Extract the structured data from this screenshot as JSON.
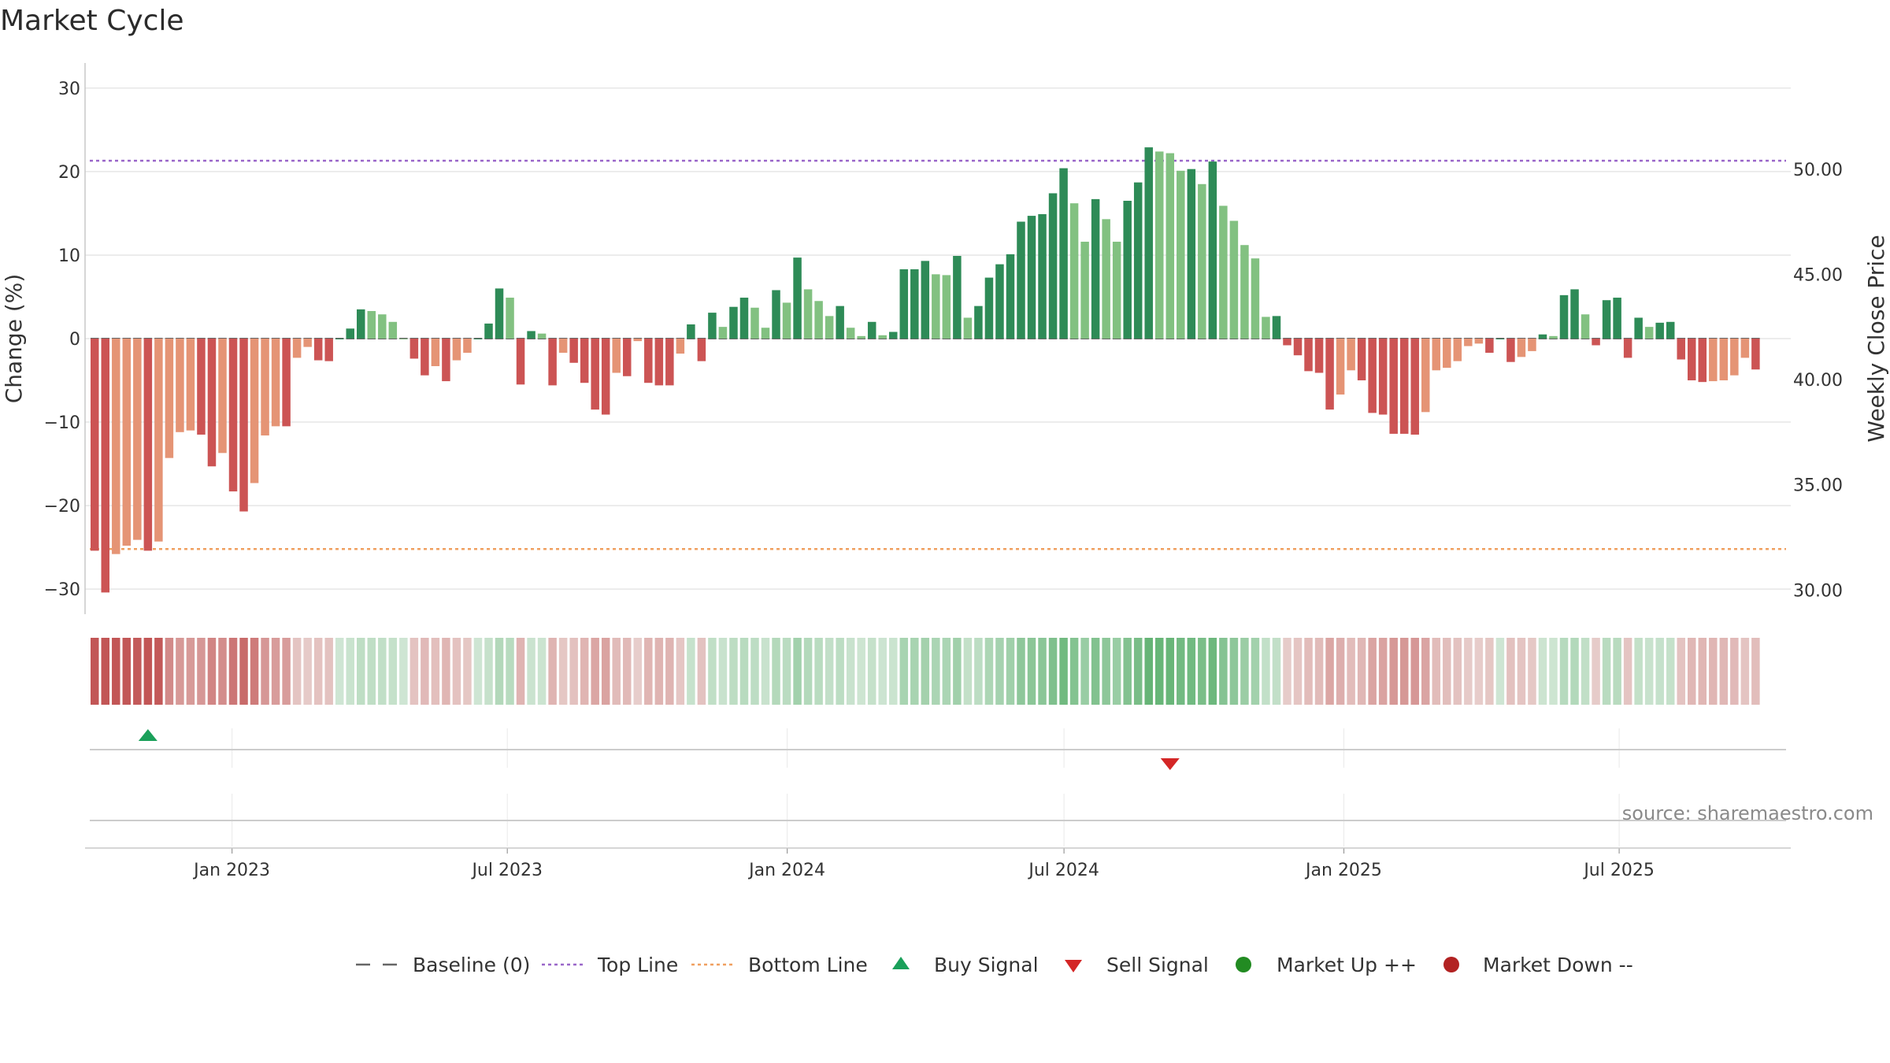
{
  "chart_data": {
    "type": "bar",
    "title": "Market Cycle",
    "ylabel": "Change (%)",
    "y2label": "Weekly Close Price",
    "ylim": [
      -33,
      33
    ],
    "y2lim": [
      28.85,
      55.05
    ],
    "yticks": [
      30,
      20,
      10,
      0,
      -10,
      -20,
      -30
    ],
    "ytick_labels": [
      "30",
      "20",
      "10",
      "0",
      "−10",
      "−20",
      "−30"
    ],
    "y2ticks": [
      50,
      45,
      40,
      35,
      30
    ],
    "y2tick_labels": [
      "50.00",
      "45.00",
      "40.00",
      "35.00",
      "30.00"
    ],
    "top_line": 21.3,
    "bottom_line": -25.2,
    "grid": true,
    "start_date": "2022-09-30",
    "x_ticks": [
      {
        "date": "2023-01-01",
        "label": "Jan 2023"
      },
      {
        "date": "2023-07-01",
        "label": "Jul 2023"
      },
      {
        "date": "2024-01-01",
        "label": "Jan 2024"
      },
      {
        "date": "2024-07-01",
        "label": "Jul 2024"
      },
      {
        "date": "2025-01-01",
        "label": "Jan 2025"
      },
      {
        "date": "2025-07-01",
        "label": "Jul 2025"
      }
    ],
    "values": [
      -25.4,
      -30.4,
      -25.8,
      -24.8,
      -24.1,
      -25.4,
      -24.3,
      -14.3,
      -11.2,
      -11,
      -11.5,
      -15.3,
      -13.7,
      -18.3,
      -20.7,
      -17.3,
      -11.6,
      -10.5,
      -10.5,
      -2.3,
      -1,
      -2.6,
      -2.7,
      0,
      1.2,
      3.5,
      3.3,
      2.9,
      2,
      0,
      -2.4,
      -4.4,
      -3.3,
      -5.1,
      -2.6,
      -1.7,
      0,
      1.8,
      6,
      4.9,
      -5.5,
      0.9,
      0.6,
      -5.6,
      -1.7,
      -2.9,
      -5.3,
      -8.5,
      -9.1,
      -4.1,
      -4.5,
      -0.3,
      -5.3,
      -5.6,
      -5.6,
      -1.8,
      1.7,
      -2.7,
      3.1,
      1.4,
      3.8,
      4.9,
      3.7,
      1.3,
      5.8,
      4.3,
      9.7,
      5.9,
      4.5,
      2.7,
      3.9,
      1.3,
      0.3,
      2,
      0.4,
      0.8,
      8.3,
      8.3,
      9.3,
      7.7,
      7.6,
      9.9,
      2.5,
      3.9,
      7.3,
      8.9,
      10.1,
      14,
      14.7,
      14.9,
      17.4,
      20.4,
      16.2,
      11.6,
      16.7,
      14.3,
      11.6,
      16.5,
      18.7,
      22.9,
      22.4,
      22.2,
      20.1,
      20.3,
      18.5,
      21.2,
      15.9,
      14.1,
      11.2,
      9.6,
      2.6,
      2.7,
      -0.8,
      -2,
      -3.9,
      -4.1,
      -8.5,
      -6.7,
      -3.8,
      -5,
      -8.9,
      -9.1,
      -11.4,
      -11.4,
      -11.5,
      -8.8,
      -3.8,
      -3.5,
      -2.7,
      -0.9,
      -0.6,
      -1.7,
      0,
      -2.8,
      -2.2,
      -1.5,
      0.5,
      0.3,
      5.2,
      5.9,
      2.9,
      -0.8,
      4.6,
      4.9,
      -2.3,
      2.5,
      1.4,
      1.9,
      2,
      -2.5,
      -5,
      -5.2,
      -5.1,
      -5,
      -4.4,
      -2.3,
      -3.7
    ],
    "signals": [
      {
        "type": "buy",
        "index": 5
      },
      {
        "type": "sell",
        "index": 101
      }
    ],
    "colors": {
      "up_strong": "#2e8b57",
      "up_weak": "#82c181",
      "down_strong": "#cc5454",
      "down_weak": "#e59475",
      "top_line": "#9a67c9",
      "bottom_line": "#f0a060",
      "buy": "#1aa05a",
      "sell": "#d42626",
      "market_up": "#228b22",
      "market_down": "#b22222",
      "grid": "#e6e6e6",
      "axis": "#c8c8c8"
    },
    "legend": {
      "placement": "bottom-center",
      "items": [
        {
          "key": "baseline",
          "label": "Baseline (0)"
        },
        {
          "key": "top",
          "label": "Top Line"
        },
        {
          "key": "bottom",
          "label": "Bottom Line"
        },
        {
          "key": "buy",
          "label": "Buy Signal"
        },
        {
          "key": "sell",
          "label": "Sell Signal"
        },
        {
          "key": "up",
          "label": "Market Up ++"
        },
        {
          "key": "down",
          "label": "Market Down --"
        }
      ]
    }
  },
  "source": "source: sharemaestro.com"
}
